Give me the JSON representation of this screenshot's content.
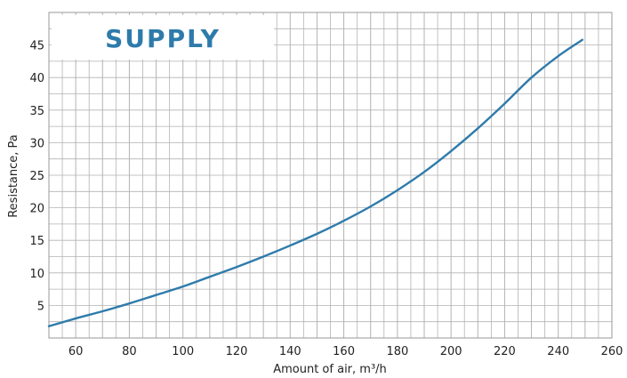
{
  "chart_data": {
    "type": "line",
    "title": "SUPPLY",
    "xlabel": "Amount of air, m³/h",
    "ylabel": "Resistance, Pa",
    "xlim": [
      50,
      260
    ],
    "ylim": [
      0,
      50
    ],
    "xticks": [
      60,
      80,
      100,
      120,
      140,
      160,
      180,
      200,
      220,
      240,
      260
    ],
    "yticks": [
      5,
      10,
      15,
      20,
      25,
      30,
      35,
      40,
      45
    ],
    "grid": true,
    "series": [
      {
        "x": [
          50,
          60,
          70,
          80,
          90,
          100,
          110,
          120,
          130,
          140,
          150,
          160,
          170,
          180,
          190,
          200,
          210,
          220,
          230,
          240,
          249
        ],
        "y": [
          1.8,
          3.0,
          4.1,
          5.3,
          6.6,
          7.9,
          9.4,
          10.9,
          12.5,
          14.2,
          16.0,
          18.0,
          20.2,
          22.7,
          25.5,
          28.7,
          32.2,
          36.0,
          40.0,
          43.3,
          45.8
        ]
      }
    ]
  },
  "colors": {
    "line": "#2e7bab",
    "grid": "#b3b3b3",
    "badge_text": "#2e7bab"
  }
}
